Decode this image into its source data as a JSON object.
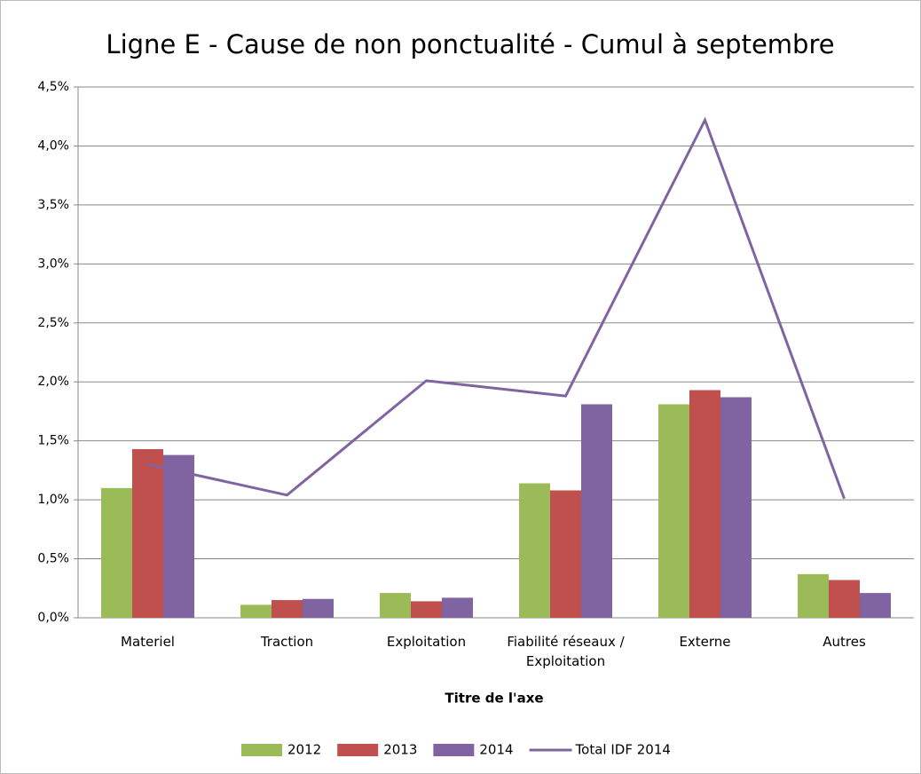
{
  "chart_data": {
    "type": "bar",
    "title": "Ligne E - Cause de non ponctualité - Cumul à septembre",
    "x_label": "Titre de l'axe",
    "categories": [
      "Materiel",
      "Traction",
      "Exploitation",
      "Fiabilité réseaux / Exploitation",
      "Externe",
      "Autres"
    ],
    "series": [
      {
        "name": "2012",
        "color": "#9bbb59",
        "values": [
          1.1,
          0.11,
          0.21,
          1.14,
          1.81,
          0.37
        ]
      },
      {
        "name": "2013",
        "color": "#c0504d",
        "values": [
          1.43,
          0.15,
          0.14,
          1.08,
          1.93,
          0.32
        ]
      },
      {
        "name": "2014",
        "color": "#8064a2",
        "values": [
          1.38,
          0.16,
          0.17,
          1.81,
          1.87,
          0.21
        ]
      },
      {
        "name": "Total IDF 2014",
        "color": "#8064a2",
        "type": "line",
        "values": [
          1.3,
          1.04,
          2.01,
          1.88,
          4.22,
          1.01
        ]
      }
    ],
    "ylim": [
      0,
      4.5
    ],
    "yticks": [
      {
        "value": 0,
        "label": "0,0%"
      },
      {
        "value": 0.5,
        "label": "0,5%"
      },
      {
        "value": 1,
        "label": "1,0%"
      },
      {
        "value": 1.5,
        "label": "1,5%"
      },
      {
        "value": 2,
        "label": "2,0%"
      },
      {
        "value": 2.5,
        "label": "2,5%"
      },
      {
        "value": 3,
        "label": "3,0%"
      },
      {
        "value": 3.5,
        "label": "3,5%"
      },
      {
        "value": 4,
        "label": "4,0%"
      },
      {
        "value": 4.5,
        "label": "4,5%"
      }
    ],
    "grid": true,
    "legend": "bottom"
  }
}
